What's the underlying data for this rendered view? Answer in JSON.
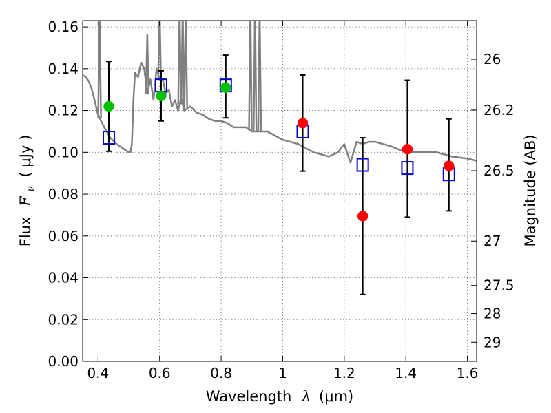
{
  "chart_data": {
    "type": "scatter",
    "title": "",
    "xlabel_main": "Wavelength",
    "xlabel_symbol": "λ",
    "xlabel_unit": "(μm)",
    "ylabel_main": "Flux",
    "ylabel_symbol": "F",
    "ylabel_subscript": "ν",
    "ylabel_unit": "( μJy )",
    "y2label": "Magnitude (AB)",
    "xlim": [
      0.35,
      1.63
    ],
    "ylim": [
      0.0,
      0.163
    ],
    "grid": true,
    "x_ticks": [
      0.4,
      0.6,
      0.8,
      1.0,
      1.2,
      1.4,
      1.6
    ],
    "x_tick_labels": [
      "0.4",
      "0.6",
      "0.8",
      "1",
      "1.2",
      "1.4",
      "1.6"
    ],
    "y_ticks": [
      0.0,
      0.02,
      0.04,
      0.06,
      0.08,
      0.1,
      0.12,
      0.14,
      0.16
    ],
    "y_tick_labels": [
      "0.00",
      "0.02",
      "0.04",
      "0.06",
      "0.08",
      "0.10",
      "0.12",
      "0.14",
      "0.16"
    ],
    "mag_ticks": [
      {
        "mag": 26,
        "label": "26"
      },
      {
        "mag": 26.2,
        "label": "26.2"
      },
      {
        "mag": 26.5,
        "label": "26.5"
      },
      {
        "mag": 27,
        "label": "27"
      },
      {
        "mag": 27.5,
        "label": "27.5"
      },
      {
        "mag": 28,
        "label": "28"
      },
      {
        "mag": 29,
        "label": "29"
      }
    ],
    "model_spectrum": {
      "name": "SED model",
      "color": "#808080",
      "x": [
        0.35,
        0.36,
        0.37,
        0.38,
        0.39,
        0.4,
        0.42,
        0.44,
        0.46,
        0.48,
        0.5,
        0.505,
        0.51,
        0.515,
        0.52,
        0.53,
        0.54,
        0.55,
        0.56,
        0.57,
        0.58,
        0.59,
        0.6,
        0.61,
        0.62,
        0.63,
        0.64,
        0.65,
        0.66,
        0.67,
        0.68,
        0.7,
        0.72,
        0.74,
        0.76,
        0.78,
        0.8,
        0.82,
        0.84,
        0.86,
        0.88,
        0.9,
        0.92,
        0.95,
        1.0,
        1.05,
        1.1,
        1.15,
        1.18,
        1.2,
        1.22,
        1.24,
        1.26,
        1.28,
        1.3,
        1.35,
        1.4,
        1.45,
        1.5,
        1.55,
        1.6,
        1.63
      ],
      "y": [
        0.137,
        0.136,
        0.134,
        0.13,
        0.124,
        0.118,
        0.112,
        0.107,
        0.104,
        0.102,
        0.1,
        0.1,
        0.104,
        0.125,
        0.138,
        0.136,
        0.143,
        0.14,
        0.128,
        0.135,
        0.125,
        0.14,
        0.135,
        0.135,
        0.128,
        0.13,
        0.122,
        0.125,
        0.12,
        0.126,
        0.12,
        0.122,
        0.119,
        0.118,
        0.116,
        0.115,
        0.115,
        0.114,
        0.112,
        0.112,
        0.112,
        0.11,
        0.11,
        0.11,
        0.106,
        0.104,
        0.1,
        0.098,
        0.1,
        0.104,
        0.095,
        0.105,
        0.104,
        0.105,
        0.105,
        0.103,
        0.1,
        0.1,
        0.1,
        0.098,
        0.097,
        0.096
      ],
      "spikes": [
        {
          "x": 0.405,
          "peak": 0.163
        },
        {
          "x": 0.56,
          "peak": 0.15
        },
        {
          "x": 0.6,
          "peak": 0.163
        },
        {
          "x": 0.665,
          "peak": 0.163
        },
        {
          "x": 0.675,
          "peak": 0.163
        },
        {
          "x": 0.685,
          "peak": 0.163
        },
        {
          "x": 0.895,
          "peak": 0.163
        },
        {
          "x": 0.91,
          "peak": 0.163
        },
        {
          "x": 0.925,
          "peak": 0.163
        }
      ]
    },
    "model_points": {
      "name": "Model photometry",
      "marker": "open-square",
      "color": "#0000cc",
      "x": [
        0.435,
        0.605,
        0.815,
        1.065,
        1.26,
        1.405,
        1.54
      ],
      "y": [
        0.107,
        0.132,
        0.132,
        0.11,
        0.094,
        0.0925,
        0.0895
      ]
    },
    "obs_green": {
      "name": "Observed (optical)",
      "marker": "filled-circle",
      "color": "#00c000",
      "x": [
        0.435,
        0.605,
        0.815
      ],
      "y": [
        0.122,
        0.127,
        0.131
      ],
      "err_low": [
        0.1005,
        0.115,
        0.1165
      ],
      "err_high": [
        0.1435,
        0.139,
        0.1465
      ]
    },
    "obs_red": {
      "name": "Observed (near-IR)",
      "marker": "filled-circle",
      "color": "#ff0000",
      "x": [
        1.065,
        1.26,
        1.405,
        1.54
      ],
      "y": [
        0.114,
        0.0695,
        0.1015,
        0.0935
      ],
      "err_low": [
        0.091,
        0.032,
        0.069,
        0.072
      ],
      "err_high": [
        0.137,
        0.107,
        0.1345,
        0.116
      ]
    }
  }
}
